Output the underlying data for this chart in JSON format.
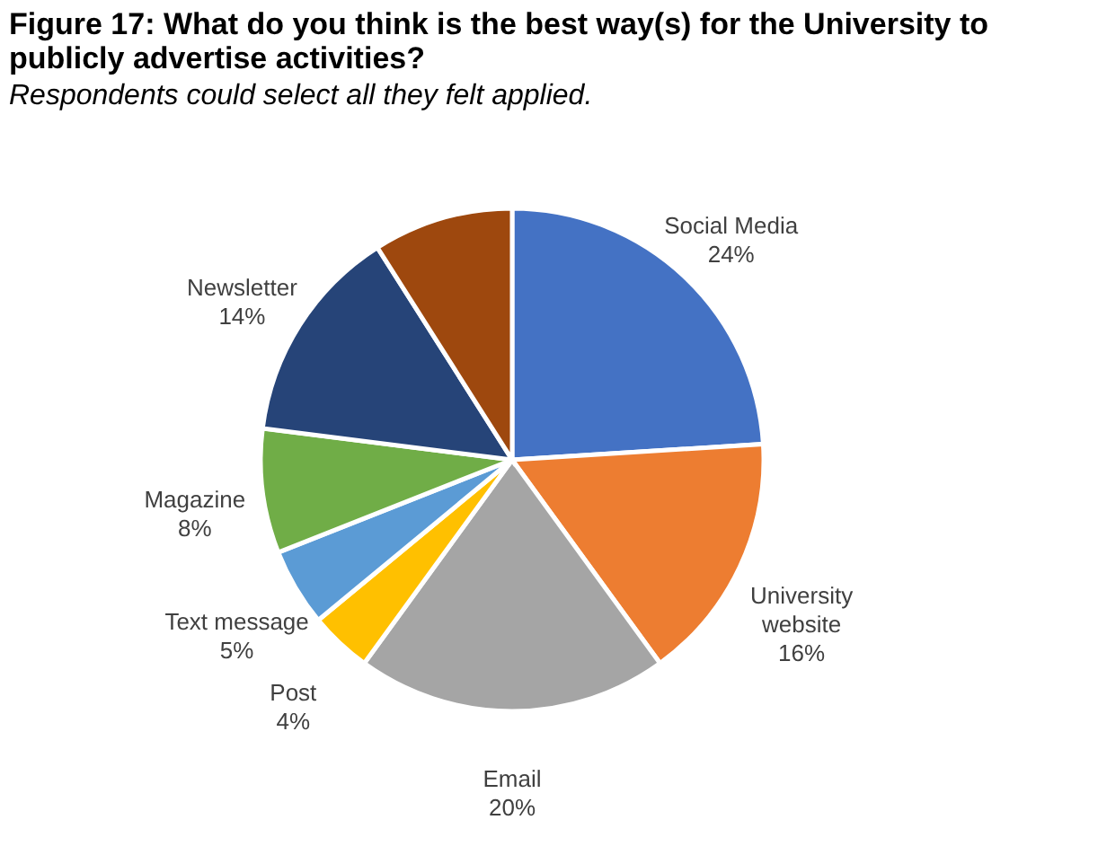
{
  "chart_data": {
    "type": "pie",
    "title": "Figure 17: What do you think is the best way(s) for the University to publicly advertise activities?",
    "subtitle": "Respondents could select all they felt applied.",
    "categories": [
      "Social Media",
      "University website",
      "Email",
      "Post",
      "Text message",
      "Magazine",
      "Newsletter",
      null
    ],
    "values": [
      24,
      16,
      20,
      4,
      5,
      8,
      14,
      9
    ],
    "value_labels": [
      "24%",
      "16%",
      "20%",
      "4%",
      "5%",
      "8%",
      "14%",
      null
    ],
    "colors": [
      "#4472c4",
      "#ed7d31",
      "#a5a5a5",
      "#ffc000",
      "#5b9bd5",
      "#70ad47",
      "#264478",
      "#9e480e"
    ],
    "legend": false
  }
}
